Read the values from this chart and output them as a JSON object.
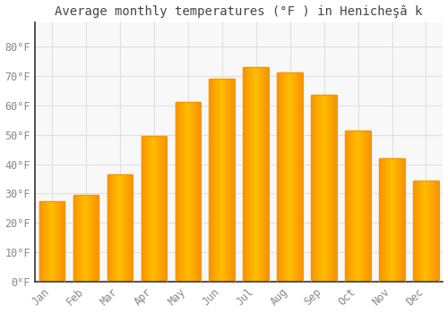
{
  "title": "Average monthly temperatures (°F ) in Henicheşâ k",
  "months": [
    "Jan",
    "Feb",
    "Mar",
    "Apr",
    "May",
    "Jun",
    "Jul",
    "Aug",
    "Sep",
    "Oct",
    "Nov",
    "Dec"
  ],
  "values": [
    27.5,
    29.5,
    36.5,
    49.5,
    61.0,
    69.0,
    73.0,
    71.0,
    63.5,
    51.5,
    42.0,
    34.5
  ],
  "bar_color_center": "#FFBE00",
  "bar_color_edge": "#F89400",
  "background_color": "#FFFFFF",
  "plot_bg_color": "#F8F8F8",
  "grid_color": "#E0E0E0",
  "text_color": "#888888",
  "spine_color": "#AAAAAA",
  "ylim": [
    0,
    88
  ],
  "yticks": [
    0,
    10,
    20,
    30,
    40,
    50,
    60,
    70,
    80
  ],
  "title_fontsize": 10,
  "tick_fontsize": 8.5,
  "bar_width": 0.75
}
